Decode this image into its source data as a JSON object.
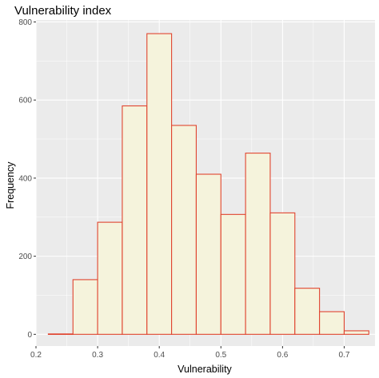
{
  "chart_data": {
    "type": "bar",
    "title": "Vulnerability index",
    "xlabel": "Vulnerability",
    "ylabel": "Frequency",
    "xlim": [
      0.2,
      0.75
    ],
    "ylim": [
      -30,
      805
    ],
    "x_ticks": [
      0.2,
      0.3,
      0.4,
      0.5,
      0.6,
      0.7
    ],
    "x_tick_labels": [
      "0.2",
      "0.3",
      "0.4",
      "0.5",
      "0.6",
      "0.7"
    ],
    "y_ticks": [
      0,
      200,
      400,
      600,
      800
    ],
    "y_tick_labels": [
      "0",
      "200",
      "400",
      "600",
      "800"
    ],
    "grid": true,
    "bin_width": 0.04,
    "bins": [
      {
        "x0": 0.22,
        "x1": 0.26,
        "count": 1
      },
      {
        "x0": 0.26,
        "x1": 0.3,
        "count": 140
      },
      {
        "x0": 0.3,
        "x1": 0.34,
        "count": 287
      },
      {
        "x0": 0.34,
        "x1": 0.38,
        "count": 585
      },
      {
        "x0": 0.38,
        "x1": 0.42,
        "count": 770
      },
      {
        "x0": 0.42,
        "x1": 0.46,
        "count": 535
      },
      {
        "x0": 0.46,
        "x1": 0.5,
        "count": 410
      },
      {
        "x0": 0.5,
        "x1": 0.54,
        "count": 307
      },
      {
        "x0": 0.54,
        "x1": 0.58,
        "count": 464
      },
      {
        "x0": 0.58,
        "x1": 0.62,
        "count": 311
      },
      {
        "x0": 0.62,
        "x1": 0.66,
        "count": 118
      },
      {
        "x0": 0.66,
        "x1": 0.7,
        "count": 58
      },
      {
        "x0": 0.7,
        "x1": 0.74,
        "count": 9
      }
    ],
    "colors": {
      "panel_background": "#EBEBEB",
      "grid_major": "#FFFFFF",
      "bar_fill": "#F5F3DC",
      "bar_outline": "#E0442F"
    }
  }
}
